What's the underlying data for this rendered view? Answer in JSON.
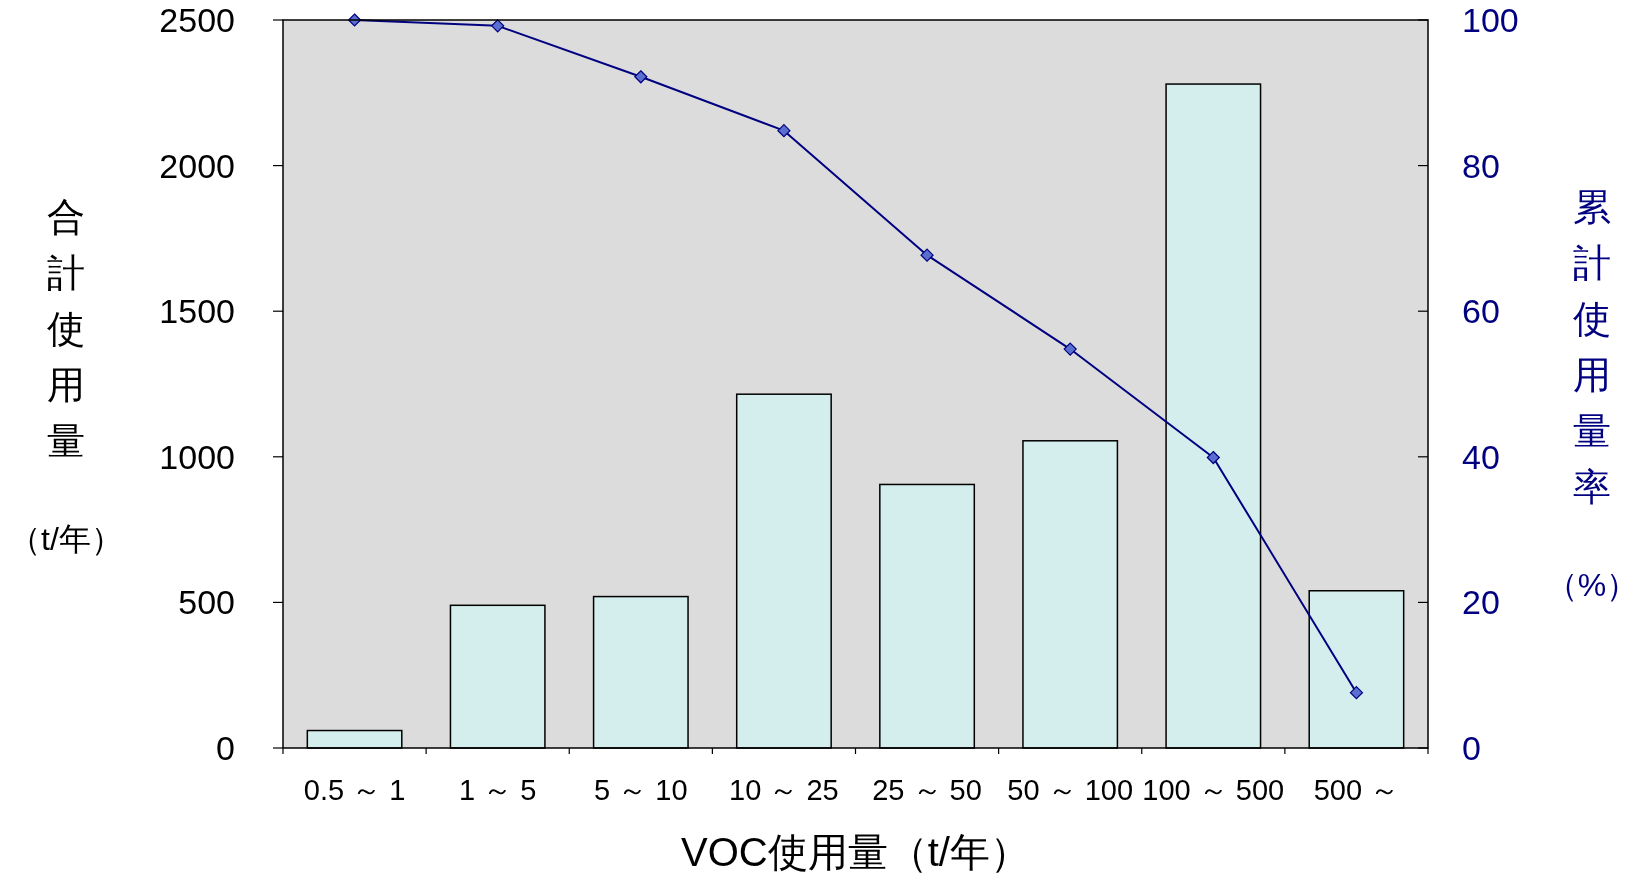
{
  "chart_data": {
    "type": "bar",
    "categories": [
      "0.5 ～ 1",
      "1 ～ 5",
      "5 ～ 10",
      "10 ～ 25",
      "25 ～ 50",
      "50 ～ 100",
      "100 ～ 500",
      "500 ～"
    ],
    "series": [
      {
        "color": "#d4eeee",
        "values": [
          60,
          490,
          520,
          1215,
          905,
          1055,
          2280,
          540
        ]
      },
      {
        "type": "line",
        "axis": "y2",
        "color": "#000080",
        "marker": "diamond",
        "values": [
          100,
          99.2,
          92.2,
          84.8,
          67.7,
          54.8,
          39.9,
          7.6
        ]
      }
    ],
    "xlabel": "VOC使用量（t/年）",
    "ylabel": "合計使用量（t/年）",
    "y2label": "累計使用量率（%）",
    "ylim": [
      0,
      2500
    ],
    "yticks": [
      0,
      500,
      1000,
      1500,
      2000,
      2500
    ],
    "y2lim": [
      0,
      100
    ],
    "y2ticks": [
      0,
      20,
      40,
      60,
      80,
      100
    ]
  }
}
